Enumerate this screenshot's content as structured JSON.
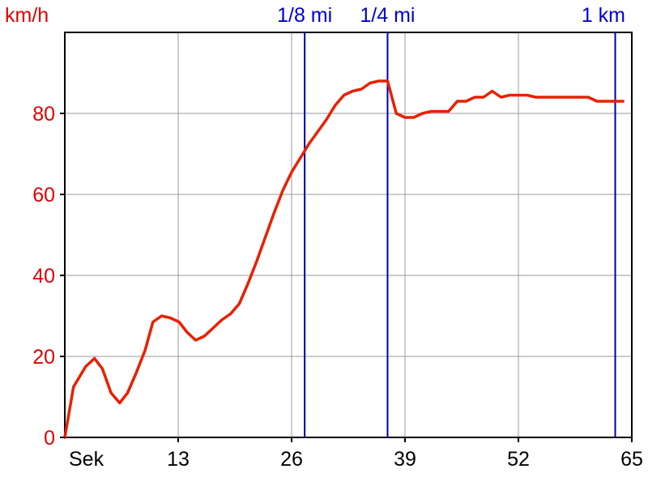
{
  "chart_data": {
    "type": "line",
    "xlabel": "Sek",
    "ylabel": "km/h",
    "xlim": [
      0,
      65
    ],
    "ylim": [
      0,
      100
    ],
    "x_ticks": [
      13,
      26,
      39,
      52,
      65
    ],
    "y_ticks": [
      0,
      20,
      40,
      60,
      80
    ],
    "grid": true,
    "colors": {
      "series": "#e82000",
      "y_axis_text": "#e00000",
      "markers": "#0000aa",
      "grid": "#999999",
      "axis": "#000000"
    },
    "series": [
      {
        "x": [
          0,
          1,
          2.4,
          3.4,
          4.3,
          5.3,
          6.3,
          7.2,
          8.2,
          9.2,
          10.1,
          11.1,
          12.1,
          13.1,
          14,
          15,
          16,
          17,
          18,
          19,
          20,
          21,
          22,
          23,
          24,
          25,
          26,
          27,
          28,
          29,
          30,
          31,
          32,
          33,
          34,
          35,
          36,
          37,
          38,
          39,
          40,
          41,
          42,
          43,
          44,
          45,
          46,
          47,
          48,
          49,
          50,
          51,
          52,
          53,
          54,
          55,
          56,
          57,
          58,
          59,
          60,
          61,
          62,
          63,
          64
        ],
        "y": [
          0,
          12.5,
          17.5,
          19.5,
          17,
          11,
          8.5,
          11,
          16,
          21.5,
          28.5,
          30,
          29.5,
          28.5,
          26,
          24,
          25,
          27,
          29,
          30.5,
          33,
          38,
          43.5,
          49.5,
          55.5,
          61,
          65.5,
          69,
          72.5,
          75.5,
          78.5,
          82,
          84.5,
          85.5,
          86,
          87.5,
          88,
          88,
          80,
          79,
          79,
          80,
          80.5,
          80.5,
          80.5,
          83,
          83,
          84,
          84,
          85.5,
          84,
          84.5,
          84.5,
          84.5,
          84,
          84,
          84,
          84,
          84,
          84,
          84,
          83,
          83,
          83,
          83
        ]
      }
    ],
    "markers": [
      {
        "label": "1/8 mi",
        "x": 27.5
      },
      {
        "label": "1/4 mi",
        "x": 37
      },
      {
        "label": "1 km",
        "x": 63.1
      }
    ]
  }
}
